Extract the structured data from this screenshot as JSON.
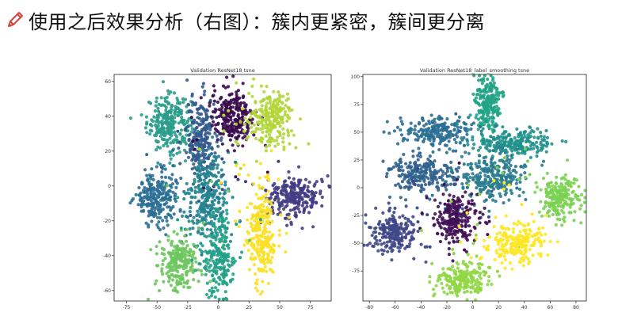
{
  "heading": {
    "text": "使用之后效果分析（右图）：簇内更紧密，簇间更分离",
    "icon": "pencil-icon",
    "icon_color": "#d2443c"
  },
  "chart_data": [
    {
      "type": "scatter",
      "title": "Validation ResNet18 tsne",
      "xlabel": "",
      "ylabel": "",
      "xlim": [
        -85,
        92
      ],
      "ylim": [
        -66,
        64
      ],
      "xticks": [
        -75,
        -50,
        -25,
        0,
        25,
        50,
        75
      ],
      "yticks": [
        -60,
        -40,
        -20,
        0,
        20,
        40,
        60
      ],
      "grid": false,
      "clusters": [
        {
          "x": -40,
          "y": 36,
          "sx": 9,
          "sy": 8,
          "n": 260,
          "color": "#2a9c89"
        },
        {
          "x": -14,
          "y": 28,
          "sx": 6,
          "sy": 12,
          "n": 230,
          "color": "#33598e"
        },
        {
          "x": 12,
          "y": 40,
          "sx": 9,
          "sy": 8,
          "n": 240,
          "color": "#3a0b4d"
        },
        {
          "x": 43,
          "y": 38,
          "sx": 9,
          "sy": 8,
          "n": 240,
          "color": "#b1d639"
        },
        {
          "x": -50,
          "y": -6,
          "sx": 9,
          "sy": 8,
          "n": 240,
          "color": "#2b6f93"
        },
        {
          "x": -8,
          "y": -8,
          "sx": 8,
          "sy": 12,
          "n": 260,
          "color": "#24838f"
        },
        {
          "x": 62,
          "y": -6,
          "sx": 11,
          "sy": 6,
          "n": 240,
          "color": "#433c83"
        },
        {
          "x": 35,
          "y": -28,
          "sx": 6,
          "sy": 14,
          "n": 260,
          "color": "#fce025"
        },
        {
          "x": -32,
          "y": -44,
          "sx": 8,
          "sy": 8,
          "n": 220,
          "color": "#6dc75e"
        },
        {
          "x": 0,
          "y": -42,
          "sx": 7,
          "sy": 12,
          "n": 220,
          "color": "#22a186"
        }
      ]
    },
    {
      "type": "scatter",
      "title": "Validation ResNet18_label_smoothing tsne",
      "xlabel": "",
      "ylabel": "",
      "xlim": [
        -85,
        88
      ],
      "ylim": [
        -102,
        102
      ],
      "xticks": [
        -80,
        -60,
        -40,
        -20,
        0,
        20,
        40,
        60,
        80
      ],
      "yticks": [
        -75,
        -50,
        -25,
        0,
        25,
        50,
        75,
        100
      ],
      "grid": false,
      "clusters": [
        {
          "x": 12,
          "y": 75,
          "sx": 5,
          "sy": 12,
          "n": 200,
          "color": "#21a385"
        },
        {
          "x": -28,
          "y": 50,
          "sx": 14,
          "sy": 7,
          "n": 220,
          "color": "#2b6f93"
        },
        {
          "x": 30,
          "y": 40,
          "sx": 16,
          "sy": 6,
          "n": 220,
          "color": "#21918c"
        },
        {
          "x": -40,
          "y": 12,
          "sx": 14,
          "sy": 8,
          "n": 220,
          "color": "#30628d"
        },
        {
          "x": 15,
          "y": 10,
          "sx": 14,
          "sy": 10,
          "n": 240,
          "color": "#2a7b8e"
        },
        {
          "x": 67,
          "y": -8,
          "sx": 8,
          "sy": 10,
          "n": 200,
          "color": "#7ad151"
        },
        {
          "x": -60,
          "y": -40,
          "sx": 9,
          "sy": 10,
          "n": 220,
          "color": "#3f4787"
        },
        {
          "x": -12,
          "y": -28,
          "sx": 8,
          "sy": 11,
          "n": 220,
          "color": "#410f56"
        },
        {
          "x": 34,
          "y": -50,
          "sx": 12,
          "sy": 9,
          "n": 220,
          "color": "#fde725"
        },
        {
          "x": -8,
          "y": -82,
          "sx": 10,
          "sy": 8,
          "n": 200,
          "color": "#8fd744"
        }
      ]
    }
  ]
}
